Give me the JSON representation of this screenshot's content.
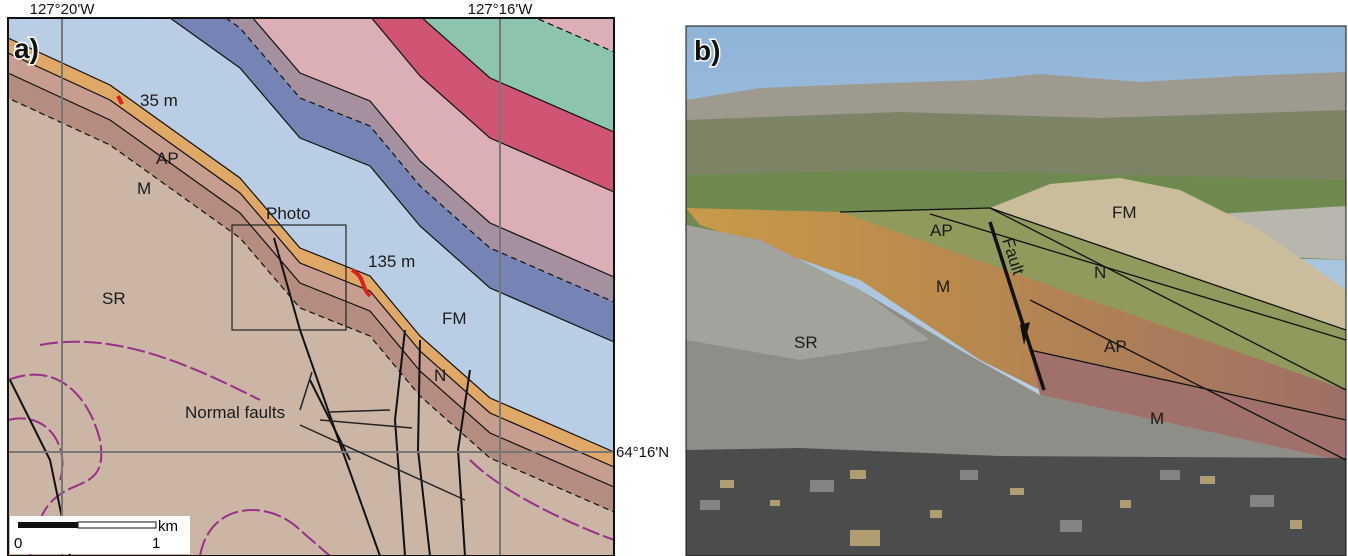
{
  "panel_a": {
    "label": "a)",
    "lon_labels": [
      "127°20'W",
      "127°16'W"
    ],
    "lat_label": "64°16'N",
    "thickness_labels": [
      "35 m",
      "135 m"
    ],
    "box_label": "Photo",
    "faults_label": "Normal faults",
    "units": [
      "AP",
      "M",
      "SR",
      "FM",
      "N"
    ],
    "scale": {
      "unit": "km",
      "ticks": [
        "0",
        "1"
      ]
    }
  },
  "panel_b": {
    "label": "b)",
    "units": [
      "FM",
      "AP",
      "N",
      "M",
      "Fault",
      "SR",
      "AP",
      "M"
    ]
  }
}
